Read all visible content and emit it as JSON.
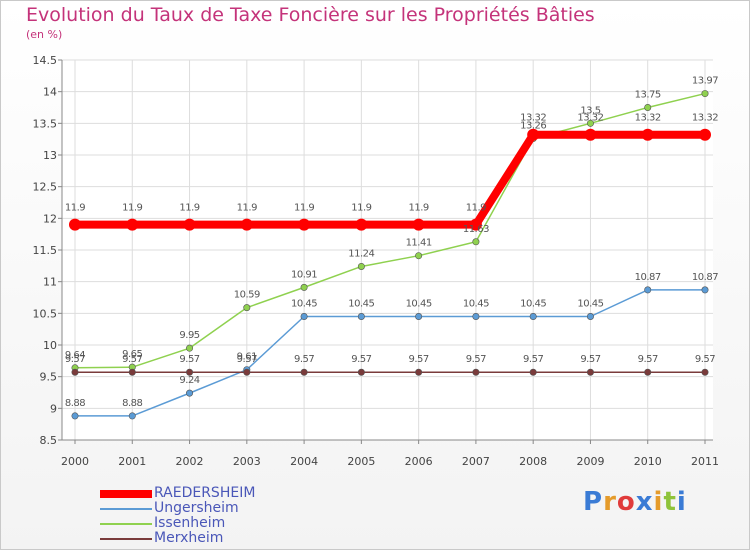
{
  "chart_data": {
    "type": "line",
    "title": "Evolution du Taux de Taxe Foncière sur les Propriétés Bâties",
    "unit_label": "(en %)",
    "xlabel": "",
    "ylabel": "",
    "ylim": [
      8.5,
      14.5
    ],
    "yticks": [
      "8.5",
      "9",
      "9.5",
      "10",
      "10.5",
      "11",
      "11.5",
      "12",
      "12.5",
      "13",
      "13.5",
      "14",
      "14.5"
    ],
    "categories": [
      "2000",
      "2001",
      "2002",
      "2003",
      "2004",
      "2005",
      "2006",
      "2007",
      "2008",
      "2009",
      "2010",
      "2011"
    ],
    "series": [
      {
        "name": "RAEDERSHEIM",
        "color": "#ff0000",
        "values": [
          11.9,
          11.9,
          11.9,
          11.9,
          11.9,
          11.9,
          11.9,
          11.9,
          13.32,
          13.32,
          13.32,
          13.32
        ],
        "labels": [
          "11.9",
          "11.9",
          "11.9",
          "11.9",
          "11.9",
          "11.9",
          "11.9",
          "11.9",
          "13.32",
          "13.32",
          "13.32",
          "13.32"
        ]
      },
      {
        "name": "Ungersheim",
        "color": "#5b9bd5",
        "values": [
          8.88,
          8.88,
          9.24,
          9.61,
          10.45,
          10.45,
          10.45,
          10.45,
          10.45,
          10.45,
          10.87,
          10.87
        ],
        "labels": [
          "8.88",
          "8.88",
          "9.24",
          "9.61",
          "10.45",
          "10.45",
          "10.45",
          "10.45",
          "10.45",
          "10.45",
          "10.87",
          "10.87"
        ]
      },
      {
        "name": "Issenheim",
        "color": "#8fd14f",
        "values": [
          9.64,
          9.65,
          9.95,
          10.59,
          10.91,
          11.24,
          11.41,
          11.63,
          13.26,
          13.5,
          13.75,
          13.97
        ],
        "labels": [
          "9.64",
          "9.65",
          "9.95",
          "10.59",
          "10.91",
          "11.24",
          "11.41",
          "11.63",
          "13.26",
          "13.5",
          "13.75",
          "13.97"
        ]
      },
      {
        "name": "Merxheim",
        "color": "#7a3b3b",
        "values": [
          9.57,
          9.57,
          9.57,
          9.57,
          9.57,
          9.57,
          9.57,
          9.57,
          9.57,
          9.57,
          9.57,
          9.57
        ],
        "labels": [
          "9.57",
          "9.57",
          "9.57",
          "9.57",
          "9.57",
          "9.57",
          "9.57",
          "9.57",
          "9.57",
          "9.57",
          "9.57",
          "9.57"
        ]
      }
    ],
    "legend_position": "bottom-left"
  },
  "logo": {
    "text": "Proxiti",
    "colors": [
      "#3a7bd5",
      "#e59b2a",
      "#e03b3b",
      "#3a7bd5",
      "#e59b2a",
      "#8fc33a",
      "#3a7bd5"
    ]
  }
}
